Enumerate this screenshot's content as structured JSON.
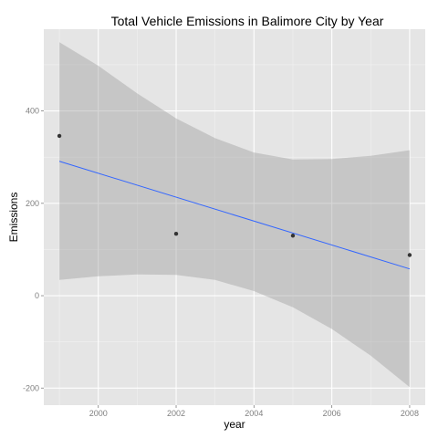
{
  "chart_data": {
    "type": "scatter",
    "title": "Total Vehicle Emissions in Balimore City by Year",
    "xlabel": "year",
    "ylabel": "Emissions",
    "xlim": [
      1998.6,
      2008.4
    ],
    "ylim": [
      -237,
      577
    ],
    "x_ticks": [
      2000,
      2002,
      2004,
      2006,
      2008
    ],
    "y_ticks": [
      -200,
      0,
      200,
      400
    ],
    "grid": true,
    "points": [
      {
        "x": 1999,
        "y": 346
      },
      {
        "x": 2002,
        "y": 134
      },
      {
        "x": 2005,
        "y": 130
      },
      {
        "x": 2008,
        "y": 88
      }
    ],
    "trend_line": {
      "x": [
        1999,
        2008
      ],
      "y": [
        291,
        58
      ],
      "color": "#3366FF"
    },
    "confidence_band": {
      "x": [
        1999,
        2000,
        2001,
        2002,
        2003,
        2004,
        2005,
        2006,
        2007,
        2008
      ],
      "lower": [
        34,
        42,
        46,
        45,
        34,
        10,
        -25,
        -72,
        -130,
        -198
      ],
      "upper": [
        549,
        498,
        438,
        384,
        341,
        310,
        295,
        296,
        303,
        315
      ],
      "color": "#999999"
    },
    "colors": {
      "panel_background": "#E5E5E5",
      "grid_major": "#FFFFFF",
      "grid_minor": "#F2F2F2",
      "point": "#333333"
    }
  }
}
